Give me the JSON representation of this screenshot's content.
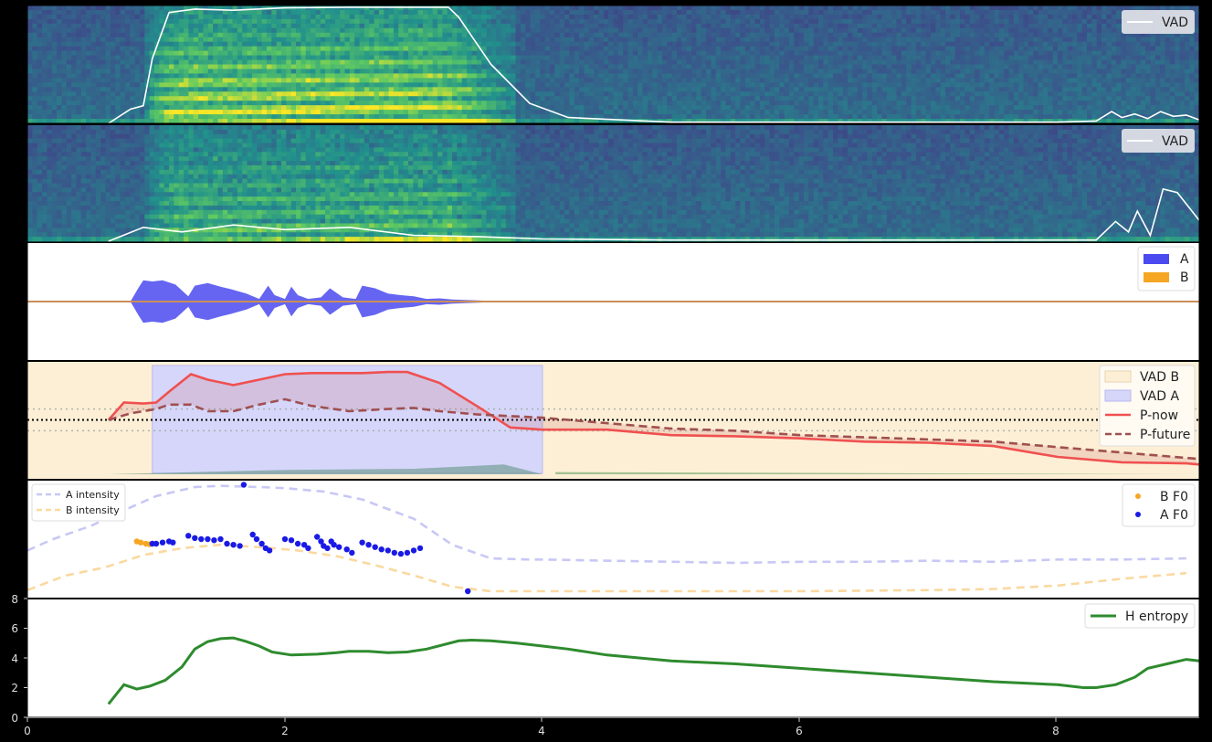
{
  "figure": {
    "x_ticks": [
      "0",
      "2",
      "4",
      "6",
      "8"
    ],
    "colors": {
      "vad_line": "#ffffff",
      "wave_a": "#4a4af0",
      "wave_b": "#f5a623",
      "vad_b_fill": "#fdefd6",
      "vad_a_fill": "#d6d6fa",
      "p_now": "#f05050",
      "p_future": "#a05050",
      "a_intensity": "#c8c8f5",
      "b_intensity": "#fad9a0",
      "a_f0": "#1a1ae6",
      "b_f0": "#f5a623",
      "entropy": "#2e8b2e"
    }
  },
  "chart_data": [
    {
      "type": "heatmap",
      "panel": "spectrogram_a",
      "xlim": [
        0,
        9.1
      ],
      "legend": {
        "placement": "top-right",
        "entries": [
          "VAD"
        ]
      },
      "vad_series": {
        "name": "VAD",
        "x": [
          0.63,
          0.8,
          0.9,
          0.97,
          1.1,
          1.3,
          1.6,
          2.0,
          2.5,
          3.0,
          3.27,
          3.35,
          3.6,
          3.9,
          4.2,
          5.0,
          6.0,
          7.0,
          8.0,
          8.3,
          8.42,
          8.5,
          8.6,
          8.7,
          8.8,
          8.9,
          9.0,
          9.1
        ],
        "y": [
          0.0,
          0.12,
          0.15,
          0.55,
          0.94,
          0.97,
          0.96,
          0.98,
          0.985,
          0.985,
          0.985,
          0.9,
          0.5,
          0.17,
          0.05,
          0.01,
          0.01,
          0.01,
          0.01,
          0.02,
          0.1,
          0.05,
          0.08,
          0.04,
          0.1,
          0.06,
          0.07,
          0.03
        ]
      }
    },
    {
      "type": "heatmap",
      "panel": "spectrogram_b",
      "xlim": [
        0,
        9.1
      ],
      "legend": {
        "placement": "top-right",
        "entries": [
          "VAD"
        ]
      },
      "vad_series": {
        "name": "VAD",
        "x": [
          0.63,
          0.9,
          1.2,
          1.6,
          2.0,
          2.5,
          3.0,
          3.5,
          4.0,
          5.0,
          6.0,
          7.0,
          8.0,
          8.3,
          8.45,
          8.55,
          8.62,
          8.72,
          8.82,
          8.93,
          9.05,
          9.1
        ],
        "y": [
          0.0,
          0.12,
          0.08,
          0.14,
          0.1,
          0.12,
          0.05,
          0.04,
          0.02,
          0.01,
          0.01,
          0.01,
          0.01,
          0.01,
          0.17,
          0.08,
          0.26,
          0.05,
          0.45,
          0.42,
          0.25,
          0.18
        ]
      }
    },
    {
      "type": "area",
      "panel": "waveform",
      "xlim": [
        0,
        9.1
      ],
      "legend": {
        "placement": "top-right",
        "entries": [
          "A",
          "B"
        ]
      },
      "series": [
        {
          "name": "A",
          "x": [
            0.8,
            0.86,
            0.9,
            0.97,
            1.05,
            1.15,
            1.25,
            1.3,
            1.4,
            1.5,
            1.6,
            1.7,
            1.8,
            1.87,
            1.92,
            2.0,
            2.05,
            2.1,
            2.18,
            2.28,
            2.35,
            2.45,
            2.55,
            2.6,
            2.7,
            2.8,
            2.9,
            3.0,
            3.1,
            3.2,
            3.3,
            3.5,
            3.7
          ],
          "envelope": [
            0.0,
            0.25,
            0.4,
            0.38,
            0.4,
            0.32,
            0.1,
            0.3,
            0.35,
            0.28,
            0.22,
            0.15,
            0.05,
            0.3,
            0.12,
            0.05,
            0.28,
            0.12,
            0.05,
            0.08,
            0.25,
            0.08,
            0.05,
            0.3,
            0.25,
            0.15,
            0.12,
            0.1,
            0.05,
            0.06,
            0.04,
            0.02,
            0.0
          ]
        },
        {
          "name": "B",
          "x": [
            0.0,
            9.1
          ],
          "envelope": [
            0.005,
            0.005
          ]
        }
      ]
    },
    {
      "type": "line",
      "panel": "probabilities",
      "xlim": [
        0,
        9.1
      ],
      "legend": {
        "placement": "top-right",
        "entries": [
          "VAD B",
          "VAD A",
          "P-now",
          "P-future"
        ]
      },
      "vad_a_span": [
        0.97,
        4.0
      ],
      "hlines": [
        0.5,
        0.6,
        0.4
      ],
      "series": [
        {
          "name": "P-now",
          "x": [
            0.63,
            0.75,
            0.9,
            1.0,
            1.1,
            1.27,
            1.4,
            1.6,
            1.8,
            2.0,
            2.2,
            2.5,
            2.6,
            2.8,
            2.95,
            3.2,
            3.5,
            3.75,
            4.0,
            4.5,
            5.0,
            5.5,
            6.0,
            6.5,
            7.0,
            7.5,
            8.0,
            8.5,
            9.0,
            9.1
          ],
          "values": [
            0.5,
            0.66,
            0.65,
            0.66,
            0.76,
            0.92,
            0.87,
            0.82,
            0.87,
            0.92,
            0.93,
            0.93,
            0.93,
            0.94,
            0.94,
            0.84,
            0.62,
            0.43,
            0.41,
            0.41,
            0.36,
            0.35,
            0.33,
            0.3,
            0.29,
            0.26,
            0.16,
            0.11,
            0.1,
            0.09
          ]
        },
        {
          "name": "P-future",
          "x": [
            0.63,
            0.8,
            1.0,
            1.1,
            1.27,
            1.4,
            1.6,
            1.8,
            2.0,
            2.2,
            2.5,
            2.8,
            3.0,
            3.2,
            3.5,
            4.0,
            4.5,
            5.0,
            5.5,
            6.0,
            6.5,
            7.0,
            7.5,
            8.0,
            8.5,
            9.0,
            9.1
          ],
          "values": [
            0.5,
            0.56,
            0.6,
            0.64,
            0.64,
            0.58,
            0.58,
            0.64,
            0.69,
            0.63,
            0.58,
            0.6,
            0.61,
            0.58,
            0.55,
            0.52,
            0.47,
            0.42,
            0.4,
            0.36,
            0.34,
            0.32,
            0.3,
            0.25,
            0.2,
            0.15,
            0.14
          ]
        }
      ],
      "bottom_areas": [
        {
          "x": [
            0.63,
            0.97,
            2.0,
            3.0,
            3.7,
            4.0
          ],
          "values": [
            0.0,
            0.01,
            0.04,
            0.05,
            0.09,
            0.0
          ],
          "color": "#5a8f7a"
        },
        {
          "x": [
            4.1,
            9.1
          ],
          "values": [
            0.02,
            0.0
          ],
          "color": "#5a9a5a"
        }
      ]
    },
    {
      "type": "line",
      "panel": "intensity_f0",
      "xlim": [
        0,
        9.1
      ],
      "legend_left": {
        "placement": "top-left",
        "entries": [
          "A intensity",
          "B intensity"
        ]
      },
      "legend_right": {
        "placement": "top-right",
        "entries": [
          "B F0",
          "A F0"
        ]
      },
      "series": [
        {
          "name": "A intensity",
          "x": [
            0.0,
            0.2,
            0.5,
            0.8,
            1.0,
            1.3,
            1.5,
            1.8,
            2.0,
            2.3,
            2.6,
            3.0,
            3.3,
            3.6,
            3.9,
            4.0,
            4.5,
            5.0,
            5.5,
            6.0,
            6.5,
            7.0,
            7.5,
            8.0,
            8.5,
            9.0
          ],
          "values": [
            0.4,
            0.5,
            0.62,
            0.78,
            0.88,
            0.96,
            0.97,
            0.96,
            0.95,
            0.92,
            0.85,
            0.68,
            0.45,
            0.33,
            0.32,
            0.32,
            0.31,
            0.3,
            0.29,
            0.3,
            0.3,
            0.31,
            0.3,
            0.32,
            0.32,
            0.33
          ]
        },
        {
          "name": "B intensity",
          "x": [
            0.0,
            0.3,
            0.6,
            0.9,
            1.2,
            1.5,
            1.8,
            2.1,
            2.4,
            2.7,
            3.0,
            3.3,
            3.6,
            3.9,
            4.0,
            5.0,
            6.0,
            7.0,
            7.5,
            8.0,
            8.5,
            9.0
          ],
          "values": [
            0.05,
            0.18,
            0.25,
            0.36,
            0.42,
            0.45,
            0.43,
            0.4,
            0.35,
            0.27,
            0.18,
            0.08,
            0.04,
            0.04,
            0.04,
            0.04,
            0.04,
            0.05,
            0.06,
            0.09,
            0.15,
            0.2
          ]
        }
      ],
      "scatter": [
        {
          "name": "B F0",
          "x": [
            0.85,
            0.88,
            0.92,
            0.95
          ],
          "values": [
            0.48,
            0.47,
            0.46,
            0.455
          ]
        },
        {
          "name": "A F0",
          "x": [
            0.97,
            1.0,
            1.05,
            1.1,
            1.13,
            1.25,
            1.3,
            1.35,
            1.4,
            1.45,
            1.5,
            1.55,
            1.6,
            1.65,
            1.75,
            1.78,
            1.82,
            1.85,
            1.88,
            2.0,
            2.05,
            2.1,
            2.15,
            2.18,
            2.25,
            2.28,
            2.3,
            2.33,
            2.36,
            2.38,
            2.42,
            2.48,
            2.52,
            2.6,
            2.65,
            2.7,
            2.75,
            2.8,
            2.85,
            2.9,
            2.95,
            3.0,
            3.05,
            1.68,
            3.42
          ],
          "values": [
            0.46,
            0.46,
            0.47,
            0.48,
            0.47,
            0.53,
            0.51,
            0.5,
            0.5,
            0.49,
            0.5,
            0.46,
            0.45,
            0.44,
            0.54,
            0.5,
            0.46,
            0.42,
            0.4,
            0.5,
            0.49,
            0.46,
            0.45,
            0.42,
            0.52,
            0.48,
            0.44,
            0.42,
            0.48,
            0.45,
            0.43,
            0.41,
            0.38,
            0.47,
            0.45,
            0.43,
            0.41,
            0.4,
            0.38,
            0.37,
            0.38,
            0.4,
            0.42,
            0.98,
            0.04
          ]
        }
      ]
    },
    {
      "type": "line",
      "panel": "entropy",
      "xlim": [
        0,
        9.1
      ],
      "ylim": [
        0,
        8
      ],
      "y_ticks": [
        "0",
        "2",
        "4",
        "6",
        "8"
      ],
      "legend": {
        "placement": "top-right",
        "entries": [
          "H entropy"
        ]
      },
      "series": [
        {
          "name": "H entropy",
          "x": [
            0.63,
            0.75,
            0.85,
            0.95,
            1.07,
            1.2,
            1.3,
            1.4,
            1.5,
            1.6,
            1.7,
            1.8,
            1.9,
            2.05,
            2.25,
            2.4,
            2.5,
            2.65,
            2.8,
            2.95,
            3.1,
            3.35,
            3.45,
            3.6,
            3.8,
            4.0,
            4.2,
            4.5,
            5.0,
            5.5,
            6.0,
            6.5,
            7.0,
            7.5,
            8.0,
            8.2,
            8.3,
            8.45,
            8.6,
            8.7,
            8.85,
            9.0,
            9.1
          ],
          "values": [
            0.9,
            2.2,
            1.9,
            2.1,
            2.5,
            3.4,
            4.6,
            5.1,
            5.3,
            5.35,
            5.1,
            4.8,
            4.4,
            4.2,
            4.25,
            4.35,
            4.45,
            4.45,
            4.35,
            4.4,
            4.6,
            5.15,
            5.2,
            5.15,
            5.0,
            4.8,
            4.6,
            4.2,
            3.8,
            3.6,
            3.3,
            3.0,
            2.7,
            2.4,
            2.2,
            2.0,
            2.0,
            2.2,
            2.7,
            3.3,
            3.6,
            3.9,
            3.8
          ]
        }
      ]
    }
  ]
}
